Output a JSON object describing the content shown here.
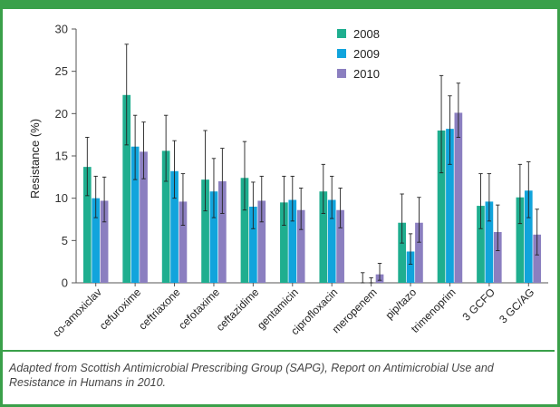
{
  "caption": "Adapted from Scottish Antimicrobial Prescribing Group (SAPG), Report on Antimicrobial Use and Resistance in Humans in 2010.",
  "chart_data": {
    "type": "bar",
    "ylabel": "Resistance (%)",
    "xlabel": "",
    "ylim": [
      0,
      30
    ],
    "yticks": [
      0,
      5,
      10,
      15,
      20,
      25,
      30
    ],
    "grid": false,
    "legend_position": "top-right",
    "categories": [
      "co-amoxiclav",
      "cefuroxime",
      "ceftriaxone",
      "cefotaxime",
      "ceftazidime",
      "gentamicin",
      "ciprofloxacin",
      "meropenem",
      "pip/tazo",
      "trimenoprim",
      "3 GCFO",
      "3 GC/AG"
    ],
    "series": [
      {
        "name": "2008",
        "color": "#1fae8f",
        "values": [
          13.7,
          22.2,
          15.6,
          12.2,
          12.4,
          9.5,
          10.8,
          0.0,
          7.1,
          18.0,
          9.1,
          10.1
        ],
        "err_low": [
          10.3,
          16.3,
          12.0,
          8.5,
          8.6,
          6.8,
          8.2,
          0.0,
          4.7,
          13.0,
          6.4,
          7.0
        ],
        "err_high": [
          17.2,
          28.2,
          19.8,
          18.0,
          16.7,
          12.6,
          14.0,
          1.2,
          10.5,
          24.5,
          12.9,
          14.0
        ]
      },
      {
        "name": "2009",
        "color": "#11a4dc",
        "values": [
          10.0,
          16.1,
          13.2,
          10.8,
          9.0,
          9.8,
          9.8,
          0.0,
          3.7,
          18.2,
          9.6,
          10.9
        ],
        "err_low": [
          7.7,
          12.2,
          10.0,
          7.7,
          6.4,
          7.3,
          7.6,
          0.0,
          2.2,
          14.0,
          7.3,
          7.7
        ],
        "err_high": [
          12.6,
          19.8,
          16.8,
          14.7,
          11.9,
          12.6,
          12.6,
          0.6,
          5.8,
          22.1,
          12.9,
          14.3
        ]
      },
      {
        "name": "2010",
        "color": "#8b7fc0",
        "values": [
          9.7,
          15.5,
          9.6,
          12.0,
          9.7,
          8.6,
          8.6,
          1.0,
          7.1,
          20.1,
          6.0,
          5.7
        ],
        "err_low": [
          7.2,
          12.3,
          6.8,
          8.2,
          7.2,
          6.3,
          6.5,
          0.3,
          4.8,
          17.2,
          3.8,
          3.3
        ],
        "err_high": [
          12.5,
          19.0,
          12.9,
          15.9,
          12.6,
          11.2,
          11.2,
          2.3,
          10.1,
          23.6,
          9.2,
          8.7
        ]
      }
    ]
  }
}
